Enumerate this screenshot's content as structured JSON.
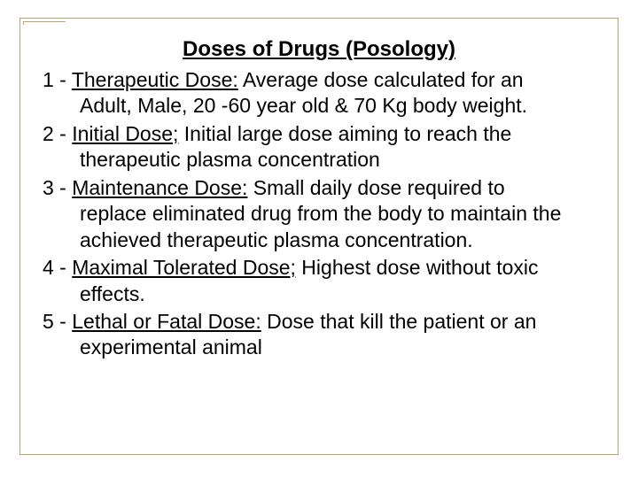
{
  "title": "Doses of Drugs (Posology)",
  "frame_color": "#b7a66a",
  "text_color": "#000000",
  "background_color": "#ffffff",
  "title_fontsize": 24,
  "body_fontsize": 23,
  "items": [
    {
      "num": "1 - ",
      "term": "Therapeutic Dose:",
      "desc_first": " Average dose calculated for an",
      "desc_cont": "Adult, Male, 20 -60 year old & 70 Kg body weight."
    },
    {
      "num": "2 - ",
      "term": "Initial Dose;",
      "desc_first": " Initial large dose aiming to reach the",
      "desc_cont": "therapeutic plasma concentration"
    },
    {
      "num": "3 - ",
      "term": "Maintenance Dose:",
      "desc_first": " Small daily dose required to",
      "desc_cont": "replace eliminated drug from the body to maintain the achieved therapeutic plasma concentration."
    },
    {
      "num": "4 - ",
      "term": "Maximal Tolerated Dose;",
      "desc_first": " Highest dose without toxic",
      "desc_cont": "effects."
    },
    {
      "num": "5 - ",
      "term": "Lethal or Fatal Dose:",
      "desc_first": " Dose that kill the patient or an",
      "desc_cont": "experimental animal"
    }
  ]
}
